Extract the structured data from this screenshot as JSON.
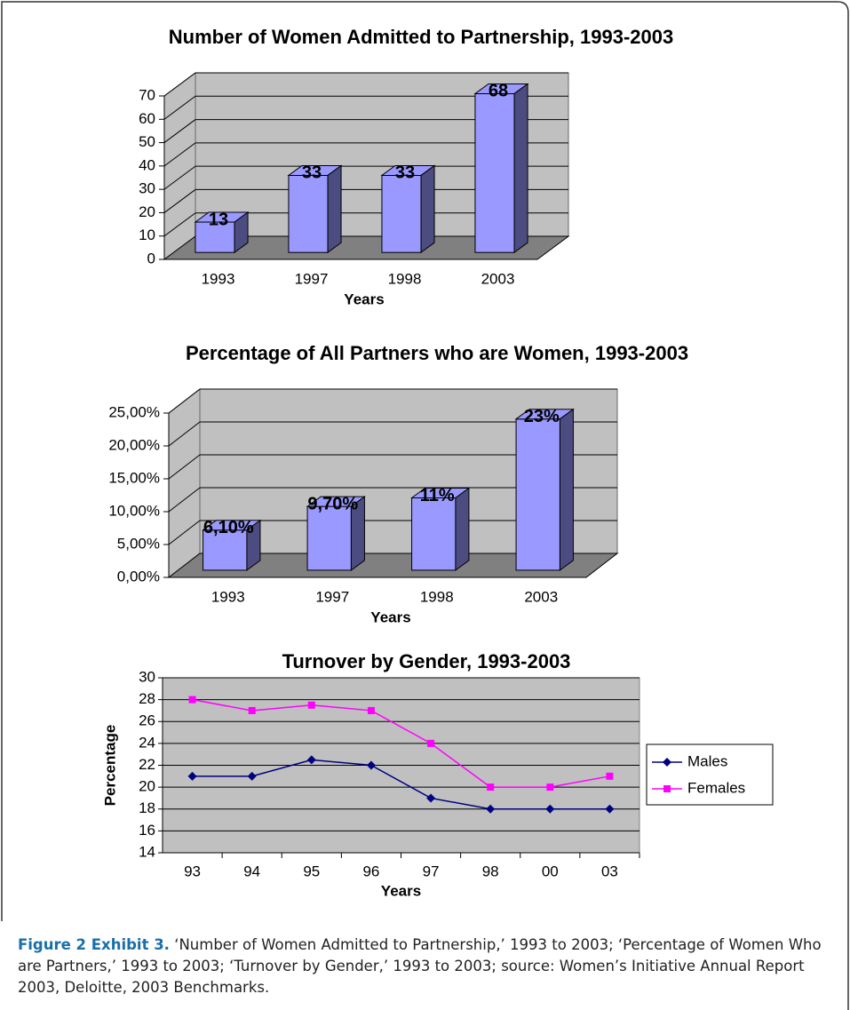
{
  "chart_data": [
    {
      "type": "bar3d",
      "title": "Number of Women Admitted to Partnership, 1993-2003",
      "categories": [
        "1993",
        "1997",
        "1998",
        "2003"
      ],
      "values": [
        13,
        33,
        33,
        68
      ],
      "color": "#9999ff",
      "ylim": [
        0,
        70
      ],
      "yticks": [
        0,
        10,
        20,
        30,
        40,
        50,
        60,
        70
      ],
      "xlabel": "Years",
      "grid": true
    },
    {
      "type": "bar3d",
      "title": "Percentage of All Partners who are Women, 1993-2003",
      "categories": [
        "1993",
        "1997",
        "1998",
        "2003"
      ],
      "values": [
        6.1,
        9.7,
        11,
        23
      ],
      "value_labels": [
        "6,10%",
        "9,70%",
        "11%",
        "23%"
      ],
      "color": "#9999ff",
      "ylim": [
        0,
        25
      ],
      "yticks": [
        {
          "value": 0,
          "label": "0,00%"
        },
        {
          "value": 5,
          "label": "5,00%"
        },
        {
          "value": 10,
          "label": "10,00%"
        },
        {
          "value": 15,
          "label": "15,00%"
        },
        {
          "value": 20,
          "label": "20,00%"
        },
        {
          "value": 25,
          "label": "25,00%"
        }
      ],
      "xlabel": "Years",
      "grid": true
    },
    {
      "type": "line",
      "title": "Turnover by Gender, 1993-2003",
      "categories": [
        "93",
        "94",
        "95",
        "96",
        "97",
        "98",
        "00",
        "03"
      ],
      "series": [
        {
          "name": "Males",
          "color": "#000080",
          "marker": "diamond",
          "values": [
            21,
            21,
            22.5,
            22,
            19,
            18,
            18,
            18
          ]
        },
        {
          "name": "Females",
          "color": "#ff00ff",
          "marker": "square",
          "values": [
            28,
            27,
            27.5,
            27,
            24,
            20,
            20,
            21
          ]
        }
      ],
      "ylim": [
        14,
        30
      ],
      "yticks": [
        14,
        16,
        18,
        20,
        22,
        24,
        26,
        28,
        30
      ],
      "xlabel": "Years",
      "ylabel": "Percentage",
      "grid": true,
      "legend": "right"
    }
  ],
  "caption": {
    "label": "Figure 2 Exhibit 3.",
    "text": "‘Number of Women Admitted to Partnership,’ 1993 to 2003; ‘Percentage of Women Who are Partners,’ 1993 to 2003; ‘Turnover by Gender,’ 1993 to 2003; source: Women’s Initiative Annual Report 2003, Deloitte, 2003 Benchmarks."
  }
}
